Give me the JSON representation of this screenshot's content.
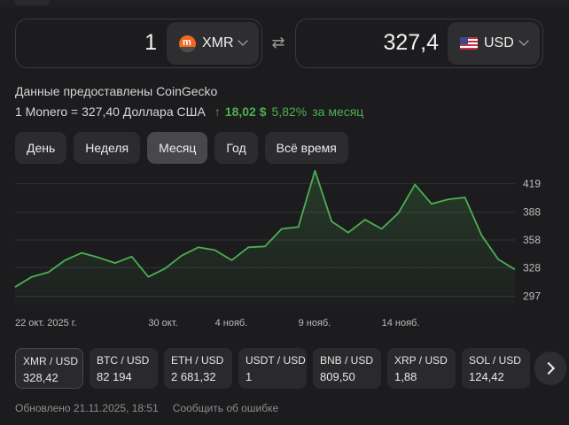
{
  "converter": {
    "from": {
      "amount": "1",
      "currency": "XMR",
      "icon": "monero-icon"
    },
    "to": {
      "amount": "327,4",
      "currency": "USD",
      "icon": "us-flag-icon"
    },
    "swap_icon": "swap-arrows-icon"
  },
  "source_text": "Данные предоставлены CoinGecko",
  "rate": {
    "text": "1 Monero = 327,40 Доллара США",
    "arrow": "↑",
    "change": "18,02 $",
    "percent": "5,82%",
    "period": "за месяц",
    "color": "#4caf50"
  },
  "periods": [
    {
      "label": "День",
      "active": false
    },
    {
      "label": "Неделя",
      "active": false
    },
    {
      "label": "Месяц",
      "active": true
    },
    {
      "label": "Год",
      "active": false
    },
    {
      "label": "Всё время",
      "active": false
    }
  ],
  "chart_data": {
    "type": "area",
    "title": "",
    "xlabel": "",
    "ylabel": "",
    "x_tick_labels": [
      "22 окт. 2025 г.",
      "30 окт.",
      "4 нояб.",
      "9 нояб.",
      "14 нояб."
    ],
    "y_tick_labels": [
      "419",
      "388",
      "358",
      "328",
      "297"
    ],
    "ylim": [
      288,
      428
    ],
    "grid": true,
    "line_color": "#4caf50",
    "values": [
      307,
      318,
      323,
      336,
      344,
      339,
      333,
      340,
      318,
      327,
      341,
      350,
      347,
      336,
      350,
      351,
      370,
      372,
      433,
      378,
      366,
      380,
      370,
      387,
      418,
      397,
      402,
      404,
      363,
      337,
      326
    ]
  },
  "pairs": [
    {
      "name": "XMR / USD",
      "value": "328,42"
    },
    {
      "name": "BTC / USD",
      "value": "82 194"
    },
    {
      "name": "ETH / USD",
      "value": "2 681,32"
    },
    {
      "name": "USDT / USD",
      "value": "1"
    },
    {
      "name": "BNB / USD",
      "value": "809,50"
    },
    {
      "name": "XRP / USD",
      "value": "1,88"
    },
    {
      "name": "SOL / USD",
      "value": "124,42"
    }
  ],
  "footer": {
    "updated": "Обновлено 21.11.2025, 18:51",
    "report": "Сообщить об ошибке"
  }
}
